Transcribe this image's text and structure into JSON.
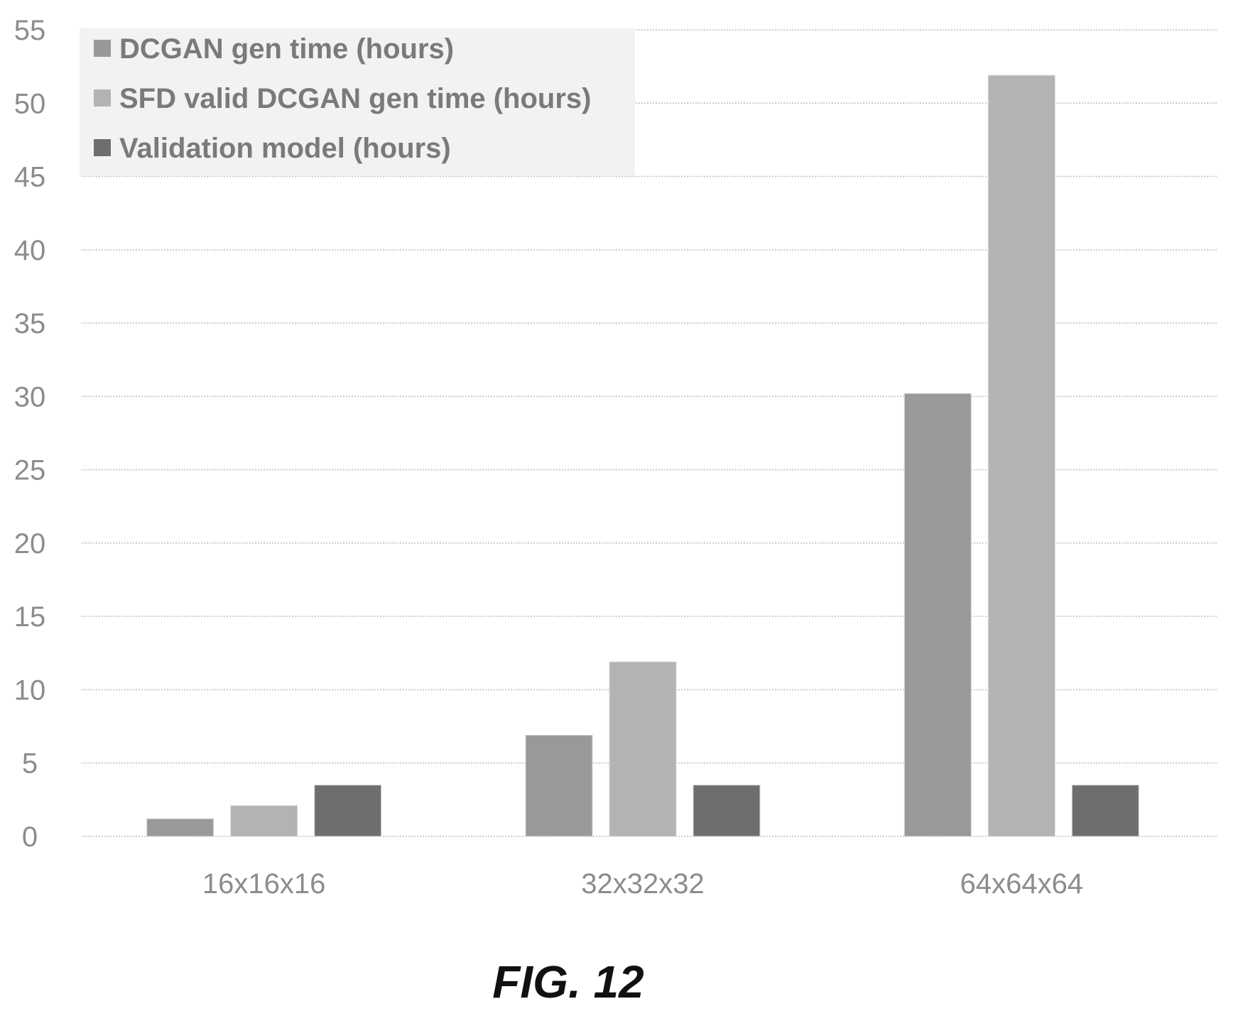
{
  "chart_data": {
    "type": "bar",
    "categories": [
      "16x16x16",
      "32x32x32",
      "64x64x64"
    ],
    "series": [
      {
        "name": "DCGAN gen time (hours)",
        "values": [
          1.2,
          6.9,
          30.2
        ],
        "color": "#999999"
      },
      {
        "name": "SFD valid DCGAN gen time (hours)",
        "values": [
          2.1,
          11.9,
          51.9
        ],
        "color": "#b3b3b3"
      },
      {
        "name": "Validation model (hours)",
        "values": [
          3.5,
          3.5,
          3.5
        ],
        "color": "#6e6e6e"
      }
    ],
    "ylim": [
      0,
      55
    ],
    "yticks": [
      0,
      5,
      10,
      15,
      20,
      25,
      30,
      35,
      40,
      45,
      50,
      55
    ],
    "grid": true,
    "legend_position": "top-left",
    "xlabel": "",
    "ylabel": "",
    "title": ""
  },
  "caption": "FIG. 12"
}
